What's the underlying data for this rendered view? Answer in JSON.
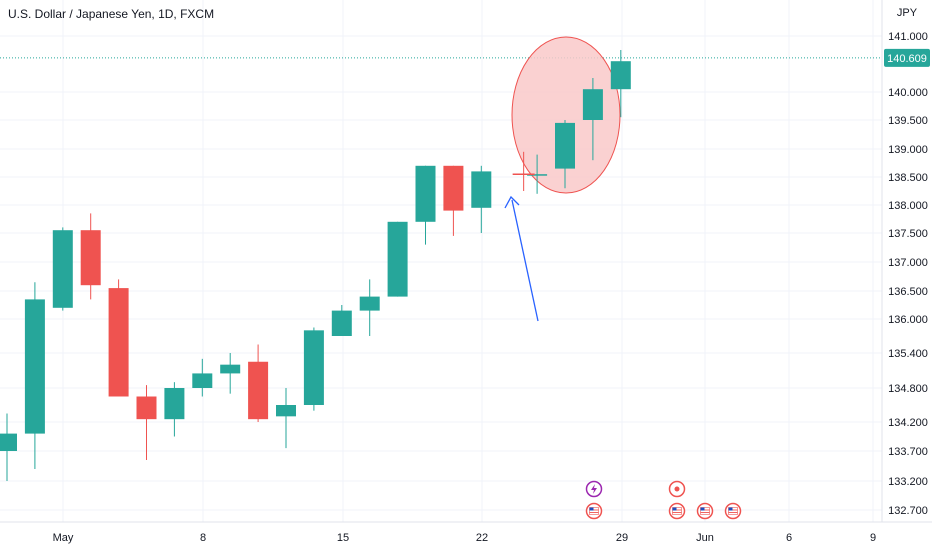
{
  "title": "U.S. Dollar / Japanese Yen, 1D, FXCM",
  "colors": {
    "up": "#26a69a",
    "down": "#ef5350",
    "price_line": "#26a69a",
    "highlight_fill": "#f9c9c9",
    "highlight_stroke": "#ef5350",
    "arrow": "#2962ff"
  },
  "chart_data": {
    "type": "candlestick",
    "title": "U.S. Dollar / Japanese Yen, 1D, FXCM",
    "currency_label": "JPY",
    "last_price": "140.609",
    "y_ticks": [
      "141.000",
      "140.000",
      "139.500",
      "139.000",
      "138.500",
      "138.000",
      "137.500",
      "137.000",
      "136.500",
      "136.000",
      "135.400",
      "134.800",
      "134.200",
      "133.700",
      "133.200",
      "132.700"
    ],
    "x_ticks": [
      "May",
      "8",
      "15",
      "22",
      "29",
      "Jun",
      "6",
      "9"
    ],
    "ylim": [
      132.45,
      141.15
    ],
    "candles": [
      {
        "o": 133.7,
        "h": 134.35,
        "l": 133.2,
        "c": 134.0
      },
      {
        "o": 134.0,
        "h": 136.65,
        "l": 133.4,
        "c": 136.35
      },
      {
        "o": 136.2,
        "h": 137.6,
        "l": 136.15,
        "c": 137.55
      },
      {
        "o": 137.55,
        "h": 137.85,
        "l": 136.35,
        "c": 136.6
      },
      {
        "o": 136.55,
        "h": 136.7,
        "l": 134.7,
        "c": 134.65
      },
      {
        "o": 134.65,
        "h": 134.85,
        "l": 133.55,
        "c": 134.25
      },
      {
        "o": 134.25,
        "h": 134.9,
        "l": 133.95,
        "c": 134.8
      },
      {
        "o": 134.8,
        "h": 135.3,
        "l": 134.65,
        "c": 135.05
      },
      {
        "o": 135.05,
        "h": 135.4,
        "l": 134.7,
        "c": 135.2
      },
      {
        "o": 135.25,
        "h": 135.55,
        "l": 134.2,
        "c": 134.25
      },
      {
        "o": 134.3,
        "h": 134.8,
        "l": 133.75,
        "c": 134.5
      },
      {
        "o": 134.5,
        "h": 135.85,
        "l": 134.4,
        "c": 135.8
      },
      {
        "o": 135.7,
        "h": 136.25,
        "l": 135.7,
        "c": 136.15
      },
      {
        "o": 136.15,
        "h": 136.7,
        "l": 135.7,
        "c": 136.4
      },
      {
        "o": 136.4,
        "h": 137.7,
        "l": 136.4,
        "c": 137.7
      },
      {
        "o": 137.7,
        "h": 138.7,
        "l": 137.3,
        "c": 138.7
      },
      {
        "o": 138.7,
        "h": 138.7,
        "l": 137.45,
        "c": 137.9
      },
      {
        "o": 137.95,
        "h": 138.7,
        "l": 137.5,
        "c": 138.6
      },
      {
        "o": 138.55,
        "h": 138.9,
        "l": 138.2,
        "c": 138.55
      },
      {
        "o": 138.65,
        "h": 139.5,
        "l": 138.3,
        "c": 139.45
      },
      {
        "o": 139.5,
        "h": 140.25,
        "l": 138.8,
        "c": 140.05
      },
      {
        "o": 140.05,
        "h": 140.75,
        "l": 139.55,
        "c": 140.55
      }
    ],
    "events_row1": [
      "flash",
      "circle"
    ],
    "events_row2": [
      "flag",
      "flag",
      "flag",
      "flag"
    ],
    "grid": true
  }
}
